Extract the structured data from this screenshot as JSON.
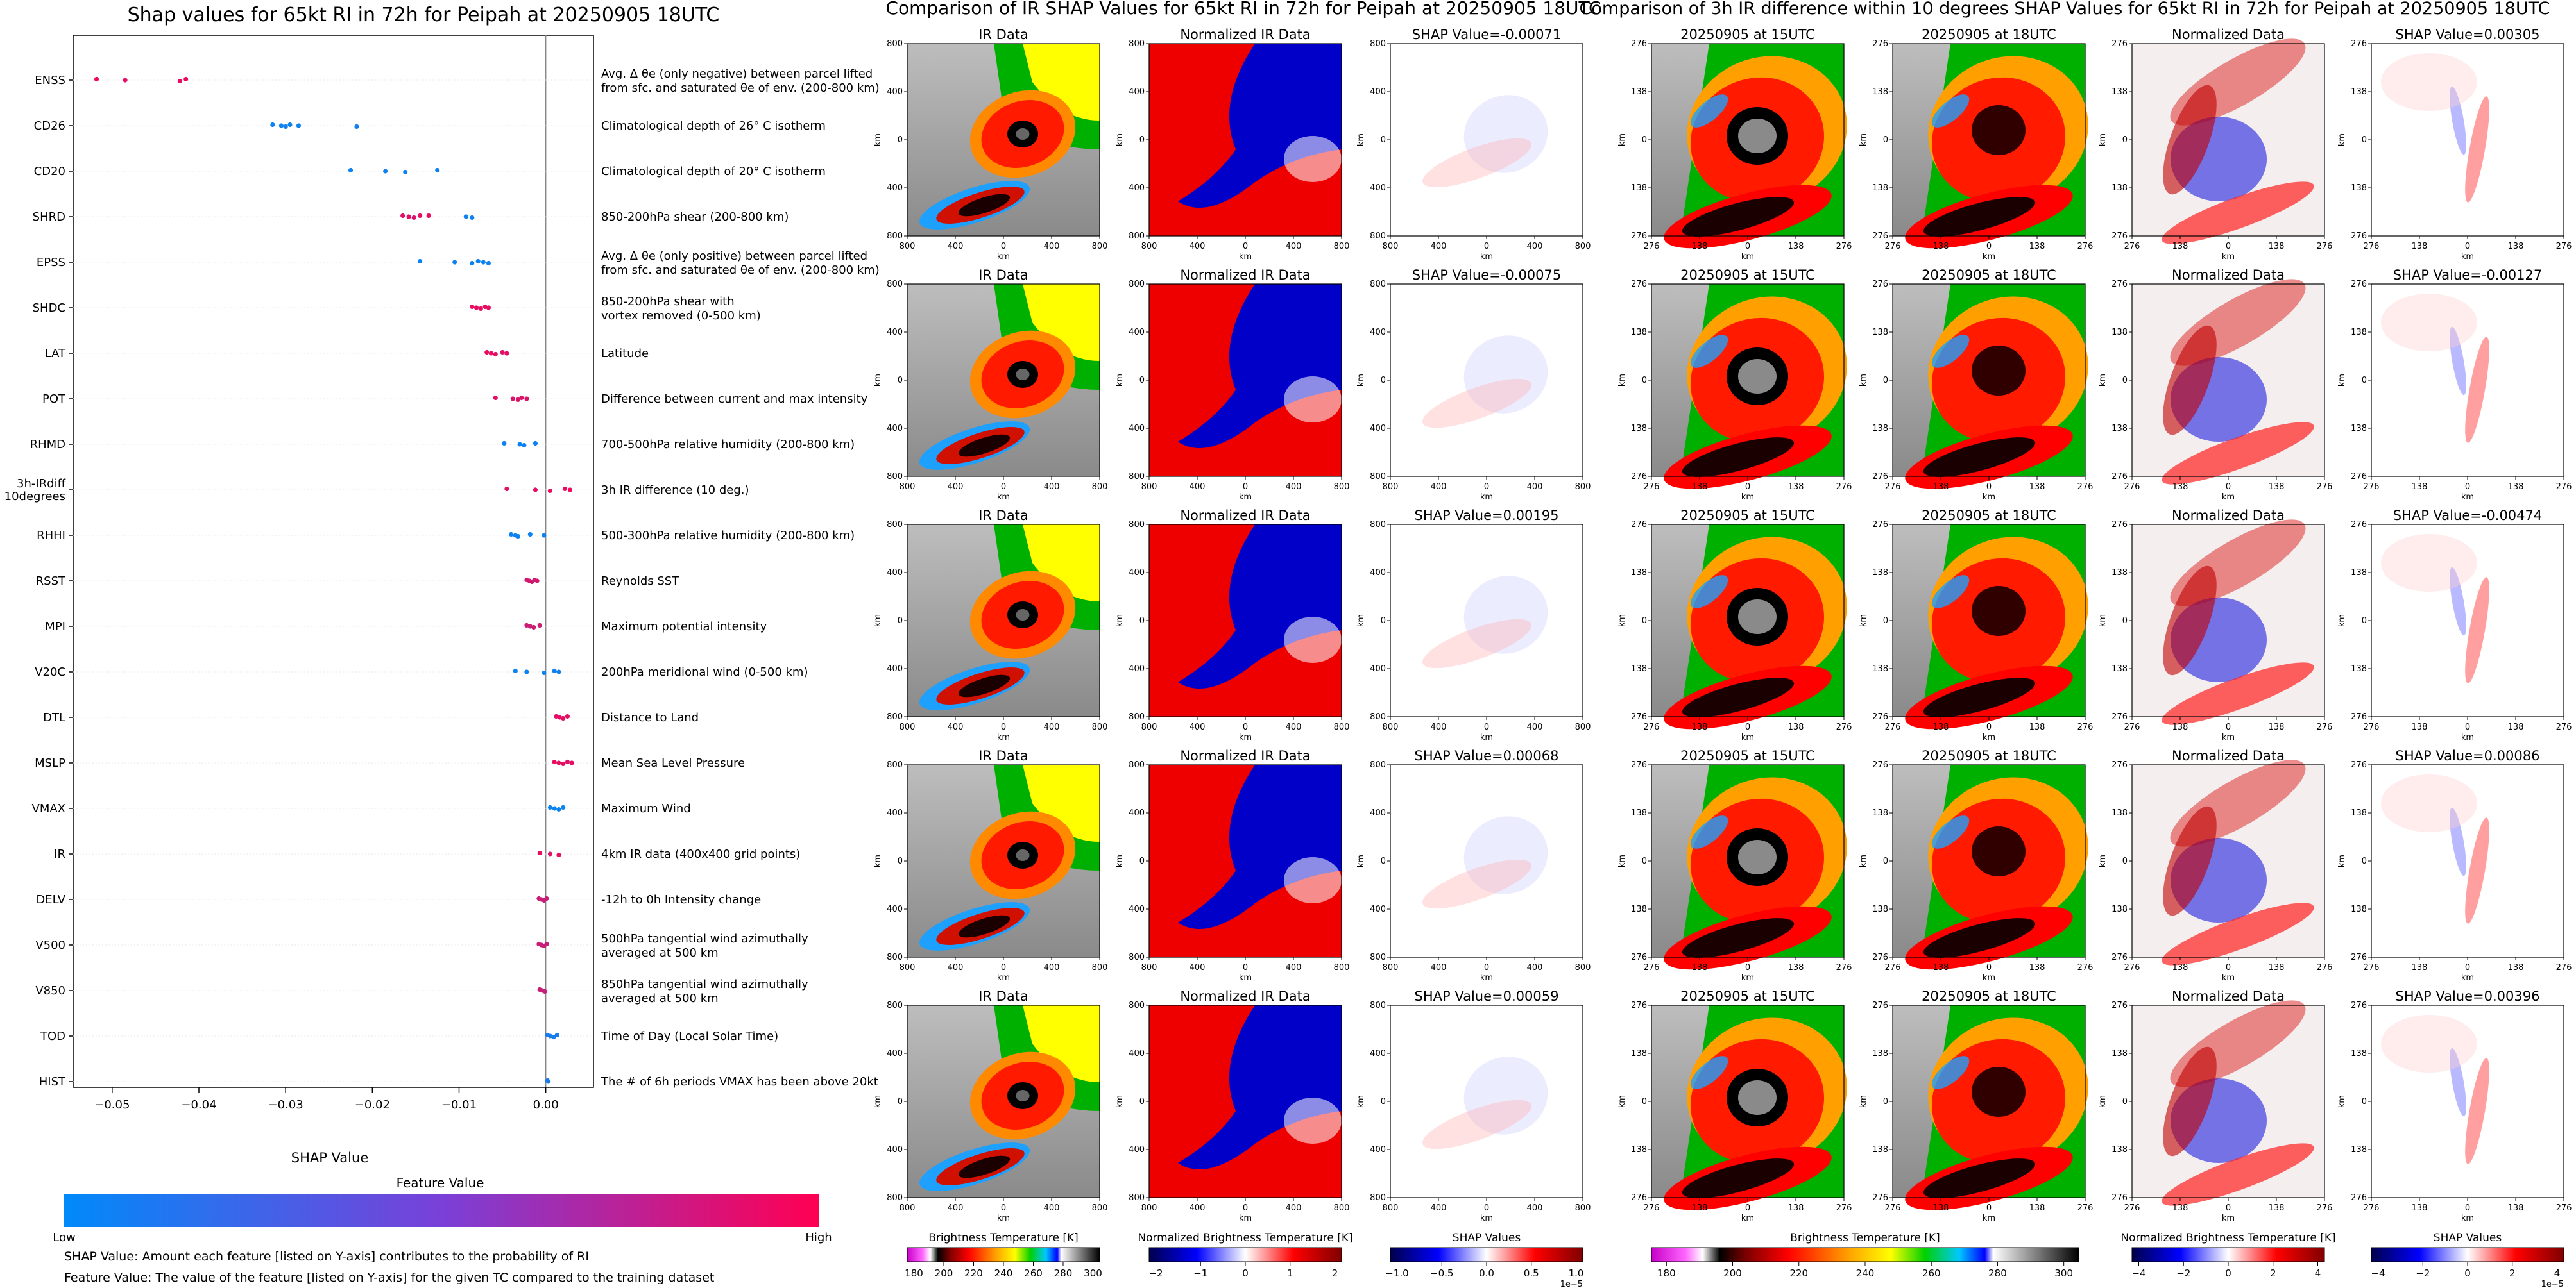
{
  "figure": {
    "left_title": "Shap values for 65kt RI in 72h for Peipah at 20250905 18UTC",
    "mid_title": "Comparison of IR SHAP Values for 65kt RI in 72h for Peipah at 20250905 18UTC",
    "right_title": "Comparison of 3h IR difference within 10 degrees SHAP Values for 65kt RI in 72h for Peipah at 20250905 18UTC"
  },
  "chart_data": [
    {
      "type": "scatter",
      "title": "Shap values for 65kt RI in 72h for Peipah at 20250905 18UTC",
      "xlabel": "SHAP Value",
      "xlim": [
        -0.0545,
        0.0055
      ],
      "xticks": [
        "−0.05",
        "−0.04",
        "−0.03",
        "−0.02",
        "−0.01",
        "0.00"
      ],
      "colorbar": {
        "label": "Feature Value",
        "low": "Low",
        "high": "High",
        "colors": [
          "#008afa",
          "#ff0052"
        ]
      },
      "notes": [
        "SHAP Value: Amount each feature [listed on Y-axis] contributes to the probability of RI",
        "Feature Value: The value of the feature [listed on Y-axis] for the given TC compared to the training dataset"
      ],
      "features": [
        {
          "name": "ENSS",
          "desc": "Avg. Δ θe (only negative) between parcel lifted\nfrom sfc. and saturated θe of env. (200-800 km)",
          "points": [
            [
              -0.0518,
              0.95
            ],
            [
              -0.0485,
              0.9
            ],
            [
              -0.0422,
              0.9
            ],
            [
              -0.0415,
              0.92
            ]
          ]
        },
        {
          "name": "CD26",
          "desc": "Climatological depth of 26° C isotherm",
          "points": [
            [
              -0.0315,
              0.05
            ],
            [
              -0.0305,
              0.05
            ],
            [
              -0.03,
              0.08
            ],
            [
              -0.0295,
              0.06
            ],
            [
              -0.0285,
              0.05
            ],
            [
              -0.0218,
              0.07
            ]
          ]
        },
        {
          "name": "CD20",
          "desc": "Climatological depth of 20° C isotherm",
          "points": [
            [
              -0.0225,
              0.05
            ],
            [
              -0.0185,
              0.06
            ],
            [
              -0.0162,
              0.05
            ],
            [
              -0.0125,
              0.05
            ]
          ]
        },
        {
          "name": "SHRD",
          "desc": "850-200hPa shear (200-800 km)",
          "points": [
            [
              -0.0165,
              0.88
            ],
            [
              -0.0158,
              0.9
            ],
            [
              -0.0152,
              0.85
            ],
            [
              -0.0145,
              0.9
            ],
            [
              -0.0092,
              0.05
            ],
            [
              -0.0085,
              0.06
            ],
            [
              -0.0135,
              0.92
            ]
          ]
        },
        {
          "name": "EPSS",
          "desc": "Avg. Δ θe (only positive) between parcel lifted\nfrom sfc. and saturated θe of env. (200-800 km)",
          "points": [
            [
              -0.0145,
              0.05
            ],
            [
              -0.0105,
              0.06
            ],
            [
              -0.0085,
              0.05
            ],
            [
              -0.0078,
              0.05
            ],
            [
              -0.0072,
              0.05
            ],
            [
              -0.0066,
              0.06
            ]
          ]
        },
        {
          "name": "SHDC",
          "desc": "850-200hPa shear with\nvortex removed (0-500 km)",
          "points": [
            [
              -0.0085,
              0.92
            ],
            [
              -0.008,
              0.9
            ],
            [
              -0.0075,
              0.93
            ],
            [
              -0.007,
              0.9
            ],
            [
              -0.0066,
              0.9
            ]
          ]
        },
        {
          "name": "LAT",
          "desc": "Latitude",
          "points": [
            [
              -0.0068,
              0.9
            ],
            [
              -0.0063,
              0.92
            ],
            [
              -0.0058,
              0.9
            ],
            [
              -0.005,
              0.88
            ],
            [
              -0.0045,
              0.9
            ]
          ]
        },
        {
          "name": "POT",
          "desc": "Difference between current and max intensity",
          "points": [
            [
              -0.0058,
              0.9
            ],
            [
              -0.0038,
              0.85
            ],
            [
              -0.0032,
              0.85
            ],
            [
              -0.0028,
              0.88
            ],
            [
              -0.0022,
              0.85
            ]
          ]
        },
        {
          "name": "RHMD",
          "desc": "700-500hPa relative humidity (200-800 km)",
          "points": [
            [
              -0.0048,
              0.05
            ],
            [
              -0.003,
              0.06
            ],
            [
              -0.0025,
              0.05
            ],
            [
              -0.0012,
              0.05
            ]
          ]
        },
        {
          "name": "3h-IRdiff\n10degrees",
          "desc": "3h IR difference (10 deg.)",
          "points": [
            [
              -0.0045,
              0.88
            ],
            [
              -0.0012,
              0.9
            ],
            [
              0.0005,
              0.92
            ],
            [
              0.0022,
              0.93
            ],
            [
              0.0028,
              0.95
            ]
          ]
        },
        {
          "name": "RHHI",
          "desc": "500-300hPa relative humidity (200-800 km)",
          "points": [
            [
              -0.004,
              0.05
            ],
            [
              -0.0035,
              0.05
            ],
            [
              -0.0032,
              0.06
            ],
            [
              -0.0018,
              0.05
            ],
            [
              -0.0002,
              0.06
            ]
          ]
        },
        {
          "name": "RSST",
          "desc": "Reynolds SST",
          "points": [
            [
              -0.0022,
              0.82
            ],
            [
              -0.0019,
              0.82
            ],
            [
              -0.0016,
              0.82
            ],
            [
              -0.0013,
              0.8
            ],
            [
              -0.001,
              0.82
            ]
          ]
        },
        {
          "name": "MPI",
          "desc": "Maximum potential intensity",
          "points": [
            [
              -0.0022,
              0.8
            ],
            [
              -0.0018,
              0.78
            ],
            [
              -0.0014,
              0.8
            ],
            [
              -0.0007,
              0.8
            ]
          ]
        },
        {
          "name": "V20C",
          "desc": "200hPa meridional wind (0-500 km)",
          "points": [
            [
              -0.0035,
              0.05
            ],
            [
              -0.0022,
              0.06
            ],
            [
              -0.0002,
              0.05
            ],
            [
              0.001,
              0.05
            ],
            [
              0.0015,
              0.06
            ]
          ]
        },
        {
          "name": "DTL",
          "desc": "Distance to Land",
          "points": [
            [
              0.0012,
              0.9
            ],
            [
              0.0016,
              0.9
            ],
            [
              0.002,
              0.9
            ],
            [
              0.0025,
              0.9
            ]
          ]
        },
        {
          "name": "MSLP",
          "desc": "Mean Sea Level Pressure",
          "points": [
            [
              0.001,
              0.9
            ],
            [
              0.0015,
              0.9
            ],
            [
              0.002,
              0.9
            ],
            [
              0.0025,
              0.88
            ],
            [
              0.003,
              0.9
            ]
          ]
        },
        {
          "name": "VMAX",
          "desc": "Maximum Wind",
          "points": [
            [
              0.0005,
              0.05
            ],
            [
              0.001,
              0.05
            ],
            [
              0.0015,
              0.05
            ],
            [
              0.002,
              0.06
            ]
          ]
        },
        {
          "name": "IR",
          "desc": "4km IR data (400x400 grid points)",
          "points": [
            [
              -0.0007,
              0.9
            ],
            [
              0.0005,
              0.88
            ],
            [
              0.0015,
              0.9
            ]
          ]
        },
        {
          "name": "DELV",
          "desc": "-12h to 0h Intensity change",
          "points": [
            [
              -0.0008,
              0.78
            ],
            [
              -0.0005,
              0.78
            ],
            [
              -0.0002,
              0.78
            ],
            [
              0.0001,
              0.78
            ]
          ]
        },
        {
          "name": "V500",
          "desc": "500hPa tangential wind azimuthally\naveraged at 500 km",
          "points": [
            [
              -0.0008,
              0.78
            ],
            [
              -0.0005,
              0.78
            ],
            [
              -0.0002,
              0.78
            ],
            [
              0.0001,
              0.78
            ]
          ]
        },
        {
          "name": "V850",
          "desc": "850hPa tangential wind azimuthally\naveraged at 500 km",
          "points": [
            [
              -0.0007,
              0.78
            ],
            [
              -0.0004,
              0.78
            ],
            [
              -0.0001,
              0.78
            ]
          ]
        },
        {
          "name": "TOD",
          "desc": "Time of Day (Local Solar Time)",
          "points": [
            [
              0.0002,
              0.1
            ],
            [
              0.0005,
              0.1
            ],
            [
              0.0009,
              0.1
            ],
            [
              0.0013,
              0.1
            ]
          ]
        },
        {
          "name": "HIST",
          "desc": "The # of 6h periods VMAX has been above 20kt",
          "points": [
            [
              0.0002,
              0.1
            ],
            [
              0.0003,
              0.1
            ]
          ]
        }
      ]
    },
    {
      "type": "heatmap",
      "title": "Comparison of IR SHAP Values for 65kt RI in 72h for Peipah at 20250905 18UTC",
      "columns": [
        {
          "title": "IR Data",
          "kind": "ir"
        },
        {
          "title": "Normalized IR Data",
          "kind": "norm"
        },
        {
          "title": "SHAP",
          "kind": "shap"
        }
      ],
      "shap_values": [
        "-0.00071",
        "-0.00075",
        "0.00195",
        "0.00068",
        "0.00059"
      ],
      "shap_prefix": "SHAP Value=",
      "xlabel": "km",
      "ylabel": "km",
      "xticks": [
        "800",
        "400",
        "0",
        "400",
        "800"
      ],
      "yticks": [
        "800",
        "400",
        "0",
        "400",
        "800"
      ],
      "colorbars": [
        {
          "label": "Brightness Temperature [K]",
          "ticks": [
            "180",
            "200",
            "220",
            "240",
            "260",
            "280",
            "300"
          ]
        },
        {
          "label": "Normalized Brightness Temperature [K]",
          "ticks": [
            "−2",
            "−1",
            "0",
            "1",
            "2"
          ]
        },
        {
          "label": "SHAP Values",
          "ticks": [
            "−1.0",
            "−0.5",
            "0.0",
            "0.5",
            "1.0"
          ],
          "multiplier": "1e−5"
        }
      ]
    },
    {
      "type": "heatmap",
      "title": "Comparison of 3h IR difference within 10 degrees SHAP Values for 65kt RI in 72h for Peipah at 20250905 18UTC",
      "columns": [
        {
          "title": "20250905 at 15UTC",
          "kind": "ir15"
        },
        {
          "title": "20250905 at 18UTC",
          "kind": "ir18"
        },
        {
          "title": "Normalized Data",
          "kind": "diff"
        },
        {
          "title": "SHAP",
          "kind": "shap2"
        }
      ],
      "shap_values": [
        "0.00305",
        "-0.00127",
        "-0.00474",
        "0.00086",
        "0.00396"
      ],
      "shap_prefix": "SHAP Value=",
      "xlabel": "km",
      "ylabel": "km",
      "xticks": [
        "276",
        "138",
        "0",
        "138",
        "276"
      ],
      "yticks": [
        "276",
        "138",
        "0",
        "138",
        "276"
      ],
      "colorbars": [
        {
          "label": "Brightness Temperature [K]",
          "ticks": [
            "180",
            "200",
            "220",
            "240",
            "260",
            "280",
            "300"
          ]
        },
        {
          "label": "Normalized Brightness Temperature [K]",
          "ticks": [
            "−4",
            "−2",
            "0",
            "2",
            "4"
          ]
        },
        {
          "label": "SHAP Values",
          "ticks": [
            "−4",
            "−2",
            "0",
            "2",
            "4"
          ],
          "multiplier": "1e−5"
        }
      ]
    }
  ]
}
